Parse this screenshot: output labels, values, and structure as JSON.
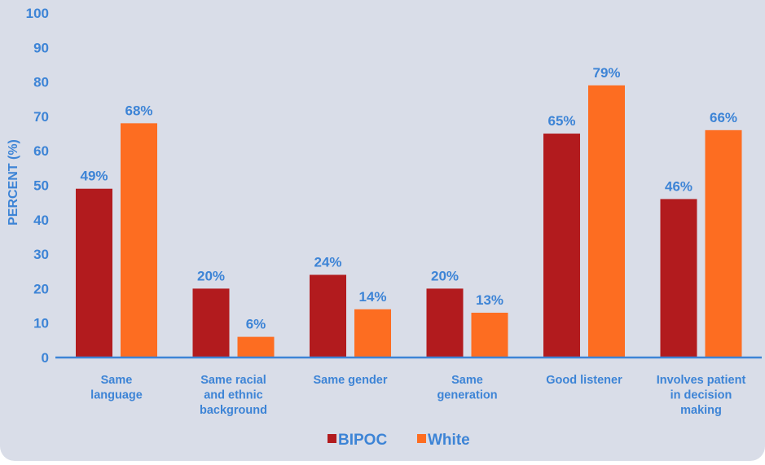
{
  "colors": {
    "background": "#d9dde8",
    "bipoc": "#b21b1e",
    "white": "#fd6d21",
    "text": "#3d84d6",
    "axis": "#3d84d6"
  },
  "chart_data": {
    "type": "bar",
    "title": "",
    "ylabel": "PERCENT (%)",
    "xlabel": "",
    "ylim": [
      0,
      100
    ],
    "yticks": [
      0,
      10,
      20,
      30,
      40,
      50,
      60,
      70,
      80,
      90,
      100
    ],
    "categories": [
      [
        "Same",
        "language"
      ],
      [
        "Same racial",
        "and ethnic",
        "background"
      ],
      [
        "Same gender"
      ],
      [
        "Same",
        "generation"
      ],
      [
        "Good listener"
      ],
      [
        "Involves patient",
        "in decision",
        "making"
      ]
    ],
    "series": [
      {
        "name": "BIPOC",
        "values": [
          49,
          20,
          24,
          20,
          65,
          46
        ],
        "labels": [
          "49%",
          "20%",
          "24%",
          "20%",
          "65%",
          "46%"
        ]
      },
      {
        "name": "White",
        "values": [
          68,
          6,
          14,
          13,
          79,
          66
        ],
        "labels": [
          "68%",
          "6%",
          "14%",
          "13%",
          "79%",
          "66%"
        ]
      }
    ],
    "legend_position": "bottom",
    "grid": false
  }
}
